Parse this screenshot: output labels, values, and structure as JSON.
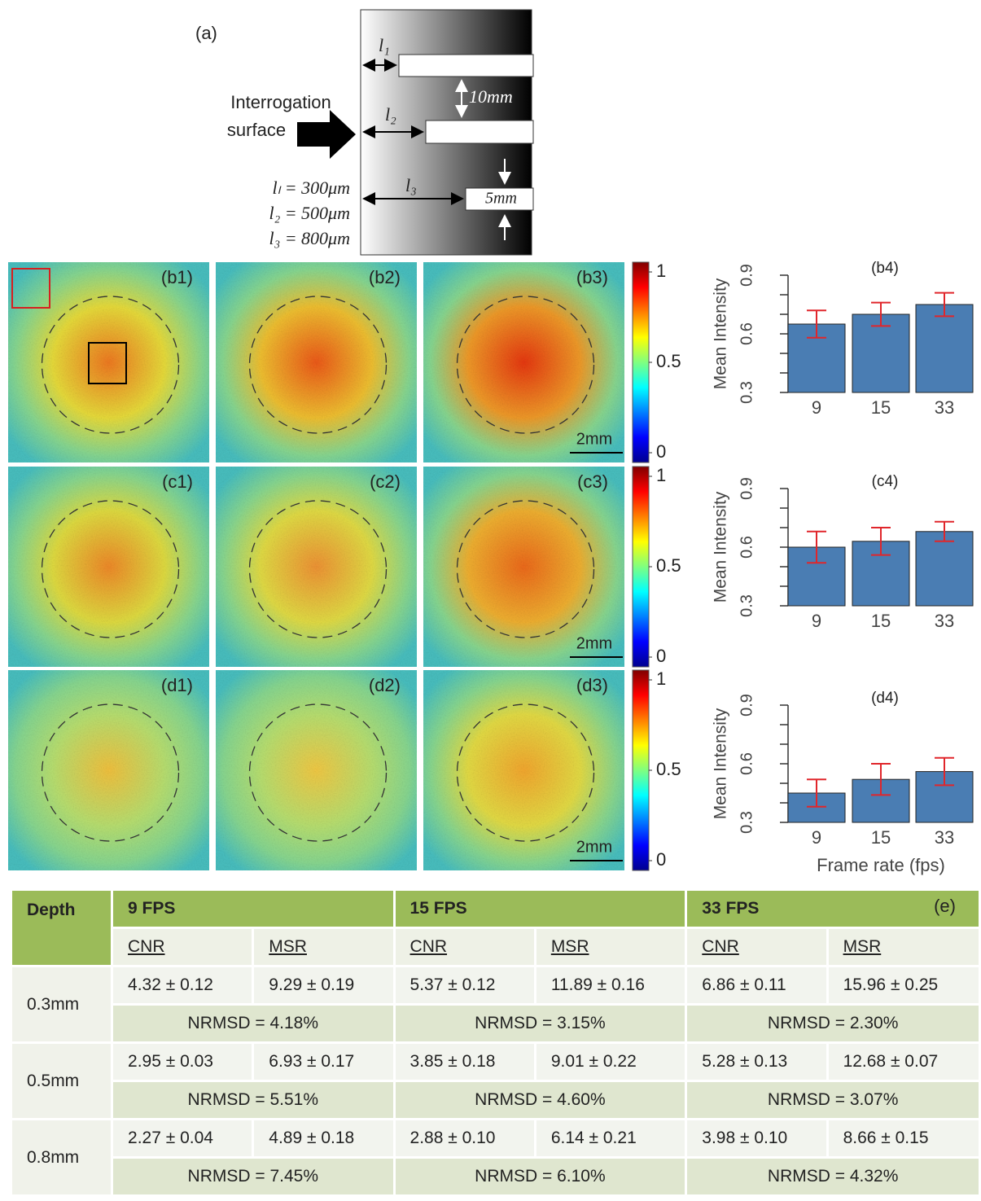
{
  "schematic": {
    "label": "(a)",
    "surface_label": [
      "Interrogation",
      "surface"
    ],
    "gap_labels": [
      "l₁",
      "l₂",
      "l₃"
    ],
    "slot_spacing": "10mm",
    "slot_width": "5mm",
    "depths": [
      "lₗ = 300μm",
      "l₂ = 500μm",
      "l₃ = 800μm"
    ]
  },
  "panels": {
    "labels": [
      [
        "(b1)",
        "(b2)",
        "(b3)"
      ],
      [
        "(c1)",
        "(c2)",
        "(c3)"
      ],
      [
        "(d1)",
        "(d2)",
        "(d3)"
      ]
    ],
    "scale_bar": "2mm",
    "colorbar": {
      "lim": [
        0,
        1
      ],
      "ticks": [
        0,
        0.5,
        1
      ]
    }
  },
  "chart_data": [
    {
      "type": "bar",
      "title": "(b4)",
      "y_label": "Mean Intensity",
      "categories": [
        "9",
        "15",
        "33"
      ],
      "values": [
        0.65,
        0.7,
        0.75
      ],
      "errors": [
        0.07,
        0.06,
        0.06
      ],
      "color": "#4a7db3",
      "error_color": "#e0262b",
      "ylim": [
        0.3,
        0.9
      ],
      "yticks": [
        0.3,
        0.6,
        0.9
      ],
      "minor_yticks": [
        0.4,
        0.5,
        0.7,
        0.8
      ]
    },
    {
      "type": "bar",
      "title": "(c4)",
      "y_label": "Mean Intensity",
      "categories": [
        "9",
        "15",
        "33"
      ],
      "values": [
        0.6,
        0.63,
        0.68
      ],
      "errors": [
        0.08,
        0.07,
        0.05
      ],
      "color": "#4a7db3",
      "error_color": "#e0262b",
      "ylim": [
        0.3,
        0.9
      ],
      "yticks": [
        0.3,
        0.6,
        0.9
      ],
      "minor_yticks": [
        0.4,
        0.5,
        0.7,
        0.8
      ]
    },
    {
      "type": "bar",
      "title": "(d4)",
      "y_label": "Mean Intensity",
      "x_label": "Frame rate (fps)",
      "categories": [
        "9",
        "15",
        "33"
      ],
      "values": [
        0.45,
        0.52,
        0.56
      ],
      "errors": [
        0.07,
        0.08,
        0.07
      ],
      "color": "#4a7db3",
      "error_color": "#e0262b",
      "ylim": [
        0.3,
        0.9
      ],
      "yticks": [
        0.3,
        0.6,
        0.9
      ],
      "minor_yticks": [
        0.4,
        0.5,
        0.7,
        0.8
      ]
    }
  ],
  "table": {
    "header": [
      "Depth",
      "9 FPS",
      "15 FPS",
      "33 FPS"
    ],
    "label": "(e)",
    "subheader": [
      "CNR",
      "MSR",
      "CNR",
      "MSR",
      "CNR",
      "MSR"
    ],
    "rows": [
      {
        "depth": "0.3mm",
        "values": [
          "4.32 ± 0.12",
          "9.29 ± 0.19",
          "5.37 ± 0.12",
          "11.89 ± 0.16",
          "6.86 ± 0.11",
          "15.96 ± 0.25"
        ],
        "nrmsd": [
          "NRMSD = 4.18%",
          "NRMSD = 3.15%",
          "NRMSD = 2.30%"
        ]
      },
      {
        "depth": "0.5mm",
        "values": [
          "2.95 ± 0.03",
          "6.93 ± 0.17",
          "3.85 ± 0.18",
          "9.01 ± 0.22",
          "5.28 ± 0.13",
          "12.68 ± 0.07"
        ],
        "nrmsd": [
          "NRMSD = 5.51%",
          "NRMSD = 4.60%",
          "NRMSD = 3.07%"
        ]
      },
      {
        "depth": "0.8mm",
        "values": [
          "2.27 ± 0.04",
          "4.89 ± 0.18",
          "2.88 ± 0.10",
          "6.14 ± 0.21",
          "3.98 ± 0.10",
          "8.66 ± 0.15"
        ],
        "nrmsd": [
          "NRMSD = 7.45%",
          "NRMSD = 6.10%",
          "NRMSD = 4.32%"
        ]
      }
    ]
  }
}
